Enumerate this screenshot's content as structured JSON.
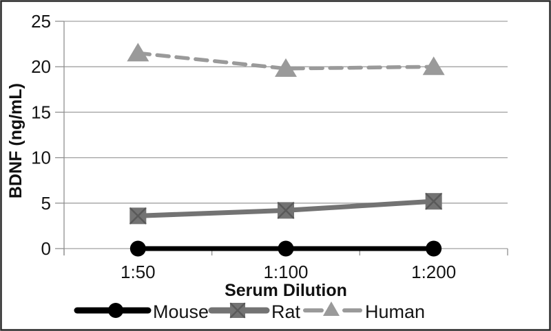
{
  "figure": {
    "background": "#ffffff",
    "border_color": "#282828",
    "border_width": 2.5
  },
  "chart_data": {
    "type": "line",
    "title": "",
    "xlabel": "Serum Dilution",
    "ylabel": "BDNF (ng/mL)",
    "categories": [
      "1:50",
      "1:100",
      "1:200"
    ],
    "yticks": [
      0,
      5,
      10,
      15,
      20,
      25
    ],
    "ylim": [
      0,
      25
    ],
    "grid": "horizontal",
    "grid_color": "#a0a0a0",
    "axis_color": "#8f8f8f",
    "text_color": "#141414",
    "legend_position": "bottom",
    "series": [
      {
        "name": "Mouse",
        "values": [
          0,
          0,
          0
        ],
        "color": "#000000",
        "marker": "circle",
        "line_style": "solid",
        "line_width": 7
      },
      {
        "name": "Rat",
        "values": [
          3.6,
          4.2,
          5.2
        ],
        "color": "#737373",
        "marker": "square",
        "line_style": "solid",
        "line_width": 7
      },
      {
        "name": "Human",
        "values": [
          21.5,
          19.8,
          20
        ],
        "color": "#9a9a9a",
        "marker": "triangle",
        "line_style": "dashed",
        "line_width": 5.5
      }
    ]
  }
}
